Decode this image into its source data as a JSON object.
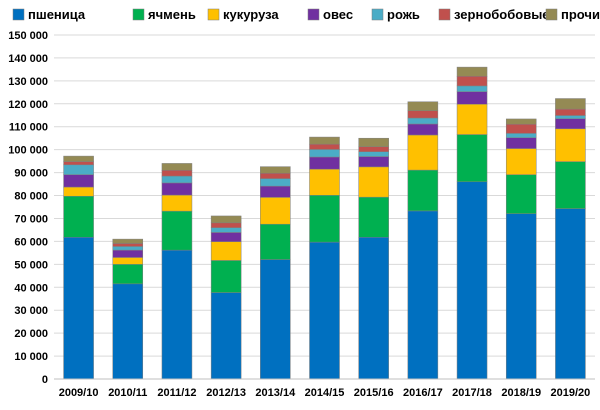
{
  "chart_data": {
    "type": "bar",
    "stacked": true,
    "categories": [
      "2009/10",
      "2010/11",
      "2011/12",
      "2012/13",
      "2013/14",
      "2014/15",
      "2015/16",
      "2016/17",
      "2017/18",
      "2018/19",
      "2019/20"
    ],
    "series": [
      {
        "name": "пшеница",
        "color": "#0070C0",
        "values": [
          61800,
          41500,
          56200,
          37700,
          52100,
          59700,
          61800,
          73300,
          86000,
          72100,
          74300
        ]
      },
      {
        "name": "ячмень",
        "color": "#00B050",
        "values": [
          17900,
          8500,
          17000,
          14000,
          15400,
          20400,
          17500,
          17800,
          20600,
          17000,
          20500
        ]
      },
      {
        "name": "кукуруза",
        "color": "#FFC000",
        "values": [
          4000,
          3000,
          7000,
          8200,
          11700,
          11400,
          13200,
          15300,
          13200,
          11400,
          14300
        ]
      },
      {
        "name": "овес",
        "color": "#7030A0",
        "values": [
          5400,
          3200,
          5300,
          4000,
          4900,
          5300,
          4500,
          4800,
          5500,
          4700,
          4400
        ]
      },
      {
        "name": "рожь",
        "color": "#4BACC6",
        "values": [
          4300,
          1600,
          3000,
          2100,
          3300,
          3300,
          2100,
          2600,
          2500,
          1900,
          1400
        ]
      },
      {
        "name": "зернобобовые",
        "color": "#C0504D",
        "values": [
          1400,
          1300,
          2500,
          2100,
          2300,
          2300,
          2200,
          3200,
          4200,
          4000,
          2800
        ]
      },
      {
        "name": "прочие",
        "color": "#948A54",
        "values": [
          2400,
          1900,
          3000,
          3000,
          2900,
          3100,
          3700,
          3900,
          4000,
          2300,
          4600
        ]
      }
    ],
    "ylim": [
      0,
      150000
    ],
    "yticks": [
      0,
      10000,
      20000,
      30000,
      40000,
      50000,
      60000,
      70000,
      80000,
      90000,
      100000,
      110000,
      120000,
      130000,
      140000,
      150000
    ],
    "ytick_labels": [
      "0",
      "10 000",
      "20 000",
      "30 000",
      "40 000",
      "50 000",
      "60 000",
      "70 000",
      "80 000",
      "90 000",
      "100 000",
      "110 000",
      "120 000",
      "130 000",
      "140 000",
      "150 000"
    ],
    "grid": true,
    "legend_position": "top"
  }
}
